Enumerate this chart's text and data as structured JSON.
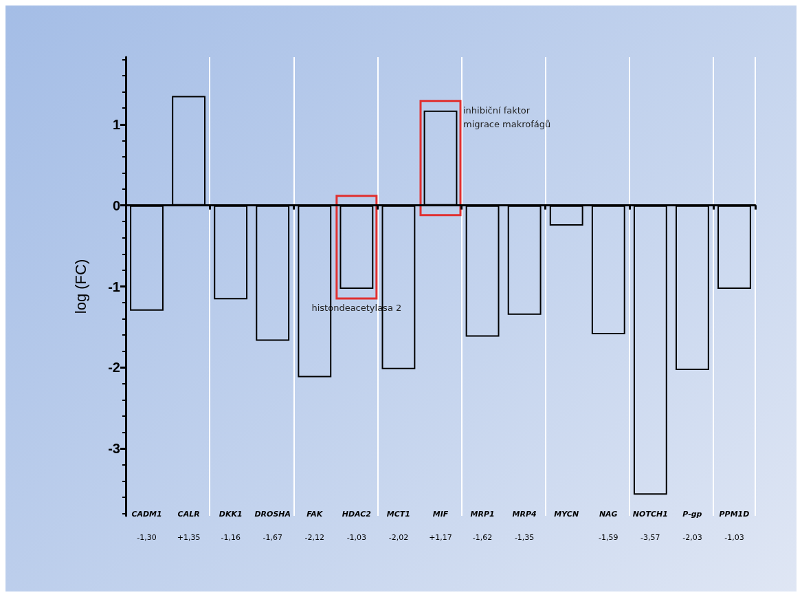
{
  "chart_data": {
    "type": "bar",
    "ylabel": "log (FC)",
    "categories": [
      "CADM1",
      "CALR",
      "DKK1",
      "DROSHA",
      "FAK",
      "HDAC2",
      "MCT1",
      "MIF",
      "MRP1",
      "MRP4",
      "MYCN",
      "NAG",
      "NOTCH1",
      "P-gp",
      "PPM1D"
    ],
    "values": [
      -1.3,
      1.35,
      -1.16,
      -1.67,
      -2.12,
      -1.03,
      -2.02,
      1.17,
      -1.62,
      -1.35,
      -0.25,
      -1.59,
      -3.57,
      -2.03,
      -1.03
    ],
    "value_labels": [
      "-1,30",
      "+1,35",
      "-1,16",
      "-1,67",
      "-2,12",
      "-1,03",
      "-2,02",
      "+1,17",
      "-1,62",
      "-1,35",
      null,
      "-1,59",
      "-3,57",
      "-2,03",
      "-1,03"
    ],
    "color": "#000000",
    "ylim": [
      -3.83,
      1.83
    ],
    "yticks": [
      -3,
      -2,
      -1,
      0,
      1
    ],
    "grid": "x",
    "annotations": [
      {
        "text": "histondeacetylasa 2",
        "x": "HDAC2",
        "y": -1.03
      },
      {
        "text": "inhibiční faktor\nmigrace makrofágů",
        "x": "MIF",
        "y": 1.17
      }
    ]
  }
}
